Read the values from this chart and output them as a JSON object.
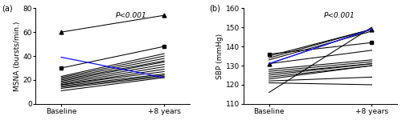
{
  "panel_a": {
    "title": "P<0.001",
    "ylabel": "MSNA (bursts/min.)",
    "xlabel_baseline": "Baseline",
    "xlabel_followup": "+8 years",
    "panel_label": "(a)",
    "ylim": [
      0,
      80
    ],
    "yticks": [
      0,
      20,
      40,
      60,
      80
    ],
    "special_triangle": {
      "baseline": 60,
      "followup": 74
    },
    "special_square": {
      "baseline": 30,
      "followup": 48
    },
    "special_blue_down": {
      "baseline": 39,
      "followup": 22
    },
    "regular_lines": [
      {
        "baseline": 23,
        "followup": 42
      },
      {
        "baseline": 22,
        "followup": 40
      },
      {
        "baseline": 21,
        "followup": 38
      },
      {
        "baseline": 20,
        "followup": 36
      },
      {
        "baseline": 19,
        "followup": 35
      },
      {
        "baseline": 18,
        "followup": 33
      },
      {
        "baseline": 17,
        "followup": 31
      },
      {
        "baseline": 16,
        "followup": 29
      },
      {
        "baseline": 16,
        "followup": 27
      },
      {
        "baseline": 15,
        "followup": 25
      },
      {
        "baseline": 14,
        "followup": 24
      },
      {
        "baseline": 13,
        "followup": 23
      },
      {
        "baseline": 11,
        "followup": 22
      }
    ]
  },
  "panel_b": {
    "title": "P<0.001",
    "ylabel": "SBP (mmHg)",
    "xlabel_baseline": "Baseline",
    "xlabel_followup": "+8 years",
    "panel_label": "(b)",
    "ylim": [
      110,
      160
    ],
    "yticks": [
      110,
      120,
      130,
      140,
      150,
      160
    ],
    "special_triangle": {
      "baseline": 131,
      "followup": 149
    },
    "special_square": {
      "baseline": 136,
      "followup": 142
    },
    "special_blue": {
      "baseline": 131,
      "followup": 149
    },
    "regular_lines": [
      {
        "baseline": 135,
        "followup": 149
      },
      {
        "baseline": 134,
        "followup": 149
      },
      {
        "baseline": 133,
        "followup": 148
      },
      {
        "baseline": 131,
        "followup": 138
      },
      {
        "baseline": 128,
        "followup": 133
      },
      {
        "baseline": 127,
        "followup": 132
      },
      {
        "baseline": 126,
        "followup": 131
      },
      {
        "baseline": 125,
        "followup": 131
      },
      {
        "baseline": 124,
        "followup": 130
      },
      {
        "baseline": 123,
        "followup": 130
      },
      {
        "baseline": 122,
        "followup": 124
      },
      {
        "baseline": 121,
        "followup": 120
      },
      {
        "baseline": 116,
        "followup": 150
      }
    ]
  },
  "line_color": "#000000",
  "blue_color": "#1a1aff",
  "lw": 0.75,
  "marker_size": 3.5,
  "fontsize": 6.5,
  "title_fontsize": 6.5
}
